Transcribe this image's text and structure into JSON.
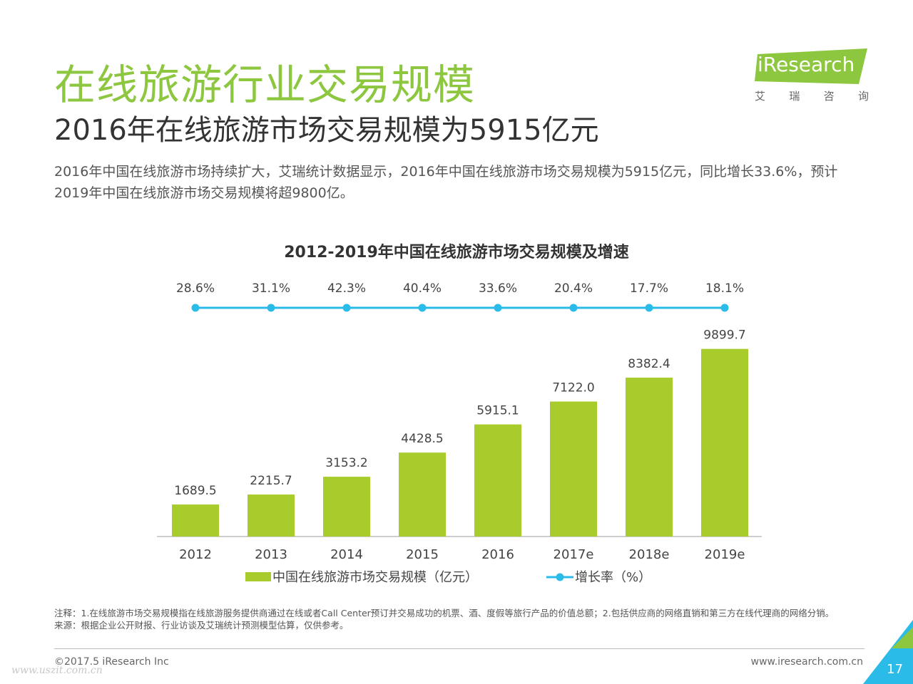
{
  "header": {
    "title": "在线旅游行业交易规模",
    "subtitle": "2016年在线旅游市场交易规模为5915亿元",
    "description": "2016年中国在线旅游市场持续扩大，艾瑞统计数据显示，2016年中国在线旅游市场交易规模为5915亿元，同比增长33.6%，预计2019年中国在线旅游市场交易规模将超9800亿。"
  },
  "logo": {
    "wordmark": "iResearch",
    "sub_chars": [
      "艾",
      "瑞",
      "咨",
      "询"
    ],
    "color": "#8dc63f"
  },
  "chart_data": {
    "type": "bar",
    "title": "2012-2019年中国在线旅游市场交易规模及增速",
    "categories": [
      "2012",
      "2013",
      "2014",
      "2015",
      "2016",
      "2017e",
      "2018e",
      "2019e"
    ],
    "series": [
      {
        "name": "中国在线旅游市场交易规模（亿元）",
        "type": "bar",
        "color": "#a8cc2c",
        "values": [
          1689.5,
          2215.7,
          3153.2,
          4428.5,
          5915.1,
          7122.0,
          8382.4,
          9899.7
        ],
        "labels": [
          "1689.5",
          "2215.7",
          "3153.2",
          "4428.5",
          "5915.1",
          "7122.0",
          "8382.4",
          "9899.7"
        ]
      },
      {
        "name": "增长率（%）",
        "type": "line",
        "color": "#2bbbe8",
        "values": [
          28.6,
          31.1,
          42.3,
          40.4,
          33.6,
          20.4,
          17.7,
          18.1
        ],
        "labels": [
          "28.6%",
          "31.1%",
          "42.3%",
          "40.4%",
          "33.6%",
          "20.4%",
          "17.7%",
          "18.1%"
        ]
      }
    ],
    "ylim": [
      0,
      10000
    ],
    "grid": false,
    "legend_position": "bottom"
  },
  "notes": {
    "note": "注释：1.在线旅游市场交易规模指在线旅游服务提供商通过在线或者Call Center预订并交易成功的机票、酒、度假等旅行产品的价值总额；2.包括供应商的网络直销和第三方在线代理商的网络分销。",
    "source": "来源：根据企业公开财报、行业访谈及艾瑞统计预测模型估算，仅供参考。"
  },
  "footer": {
    "copyright": "©2017.5 iResearch Inc",
    "website": "www.iresearch.com.cn",
    "page_number": "17",
    "watermark": "www.uszit.com.cn"
  }
}
